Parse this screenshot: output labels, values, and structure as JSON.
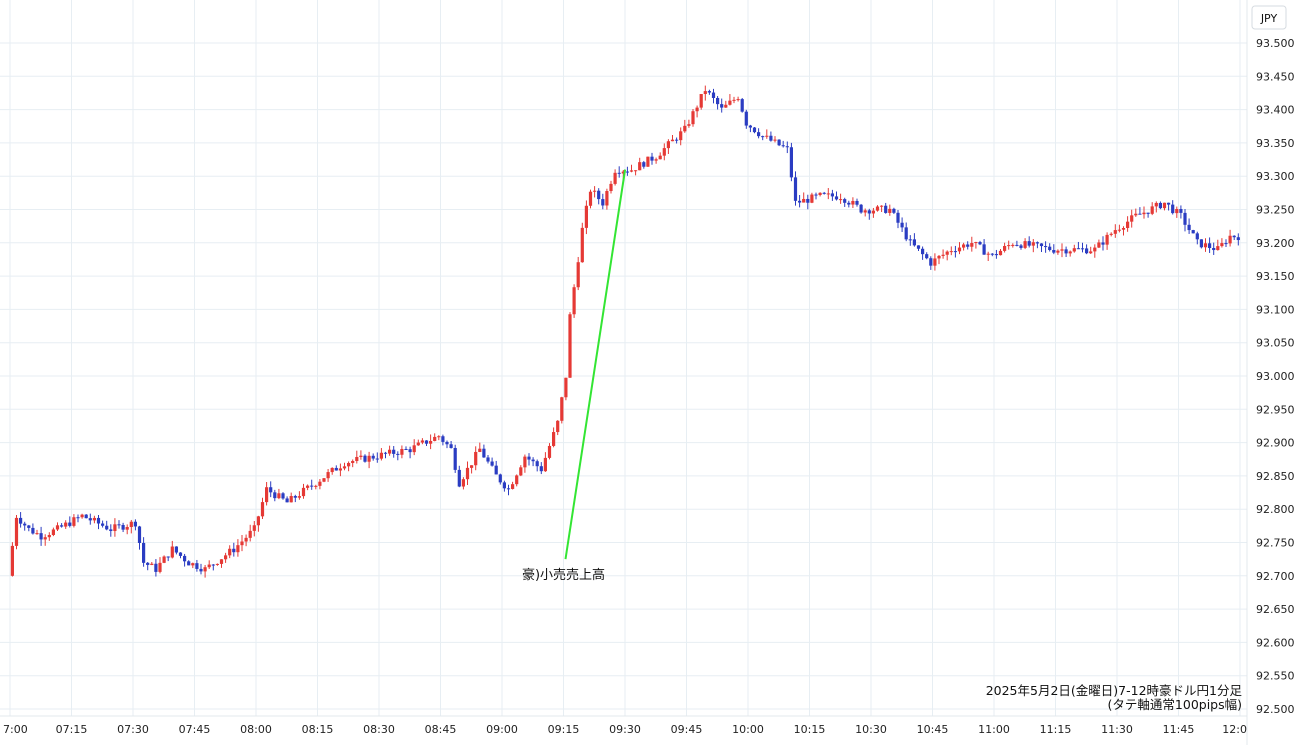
{
  "chart_data": {
    "type": "candlestick",
    "currency_label": "JPY",
    "caption_lines": [
      "2025年5月2日(金曜日)7-12時豪ドル円1分足",
      "(タテ軸通常100pips幅)"
    ],
    "annotation": {
      "text": "豪)小売売上高",
      "from": [
        "09:15",
        92.725
      ],
      "to": [
        "09:31",
        93.31
      ]
    },
    "colors": {
      "up": "#e53935",
      "down": "#2a3cc2",
      "annotation_line": "#33e533",
      "grid": "#e7eef3"
    },
    "ylim": [
      92.5,
      93.5
    ],
    "y_ticks": [
      "93.500",
      "93.450",
      "93.400",
      "93.350",
      "93.300",
      "93.250",
      "93.200",
      "93.150",
      "93.100",
      "93.050",
      "93.000",
      "92.950",
      "92.900",
      "92.850",
      "92.800",
      "92.750",
      "92.700",
      "92.650",
      "92.600",
      "92.550",
      "92.500"
    ],
    "x_ticks": [
      "7:00",
      "07:15",
      "07:30",
      "07:45",
      "08:00",
      "08:15",
      "08:30",
      "08:45",
      "09:00",
      "09:15",
      "09:30",
      "09:45",
      "10:00",
      "10:15",
      "10:30",
      "10:45",
      "11:00",
      "11:15",
      "11:30",
      "11:45",
      "12:0"
    ],
    "x_range": [
      "07:00",
      "12:00"
    ],
    "key_points": [
      {
        "time": "07:00",
        "price": 92.7
      },
      {
        "time": "07:02",
        "price": 92.79
      },
      {
        "time": "07:05",
        "price": 92.77
      },
      {
        "time": "07:08",
        "price": 92.76
      },
      {
        "time": "07:12",
        "price": 92.77
      },
      {
        "time": "07:18",
        "price": 92.79
      },
      {
        "time": "07:25",
        "price": 92.77
      },
      {
        "time": "07:31",
        "price": 92.78
      },
      {
        "time": "07:33",
        "price": 92.72
      },
      {
        "time": "07:36",
        "price": 92.71
      },
      {
        "time": "07:40",
        "price": 92.74
      },
      {
        "time": "07:44",
        "price": 92.72
      },
      {
        "time": "07:48",
        "price": 92.71
      },
      {
        "time": "07:55",
        "price": 92.74
      },
      {
        "time": "08:00",
        "price": 92.77
      },
      {
        "time": "08:03",
        "price": 92.83
      },
      {
        "time": "08:08",
        "price": 92.81
      },
      {
        "time": "08:15",
        "price": 92.84
      },
      {
        "time": "08:22",
        "price": 92.87
      },
      {
        "time": "08:30",
        "price": 92.88
      },
      {
        "time": "08:38",
        "price": 92.89
      },
      {
        "time": "08:45",
        "price": 92.91
      },
      {
        "time": "08:48",
        "price": 92.89
      },
      {
        "time": "08:50",
        "price": 92.84
      },
      {
        "time": "08:55",
        "price": 92.89
      },
      {
        "time": "08:59",
        "price": 92.85
      },
      {
        "time": "09:02",
        "price": 92.83
      },
      {
        "time": "09:06",
        "price": 92.88
      },
      {
        "time": "09:10",
        "price": 92.86
      },
      {
        "time": "09:14",
        "price": 92.93
      },
      {
        "time": "09:16",
        "price": 93.0
      },
      {
        "time": "09:17",
        "price": 93.09
      },
      {
        "time": "09:20",
        "price": 93.22
      },
      {
        "time": "09:22",
        "price": 93.28
      },
      {
        "time": "09:25",
        "price": 93.26
      },
      {
        "time": "09:28",
        "price": 93.31
      },
      {
        "time": "09:32",
        "price": 93.31
      },
      {
        "time": "09:38",
        "price": 93.33
      },
      {
        "time": "09:45",
        "price": 93.37
      },
      {
        "time": "09:50",
        "price": 93.43
      },
      {
        "time": "09:54",
        "price": 93.4
      },
      {
        "time": "09:58",
        "price": 93.42
      },
      {
        "time": "10:00",
        "price": 93.38
      },
      {
        "time": "10:04",
        "price": 93.36
      },
      {
        "time": "10:10",
        "price": 93.34
      },
      {
        "time": "10:12",
        "price": 93.26
      },
      {
        "time": "10:18",
        "price": 93.27
      },
      {
        "time": "10:23",
        "price": 93.27
      },
      {
        "time": "10:28",
        "price": 93.25
      },
      {
        "time": "10:35",
        "price": 93.25
      },
      {
        "time": "10:40",
        "price": 93.2
      },
      {
        "time": "10:45",
        "price": 93.17
      },
      {
        "time": "10:50",
        "price": 93.19
      },
      {
        "time": "10:55",
        "price": 93.2
      },
      {
        "time": "11:00",
        "price": 93.18
      },
      {
        "time": "11:05",
        "price": 93.2
      },
      {
        "time": "11:15",
        "price": 93.19
      },
      {
        "time": "11:25",
        "price": 93.19
      },
      {
        "time": "11:30",
        "price": 93.22
      },
      {
        "time": "11:35",
        "price": 93.24
      },
      {
        "time": "11:42",
        "price": 93.26
      },
      {
        "time": "11:46",
        "price": 93.24
      },
      {
        "time": "11:50",
        "price": 93.2
      },
      {
        "time": "11:55",
        "price": 93.19
      },
      {
        "time": "11:58",
        "price": 93.21
      },
      {
        "time": "12:00",
        "price": 93.21
      }
    ]
  }
}
